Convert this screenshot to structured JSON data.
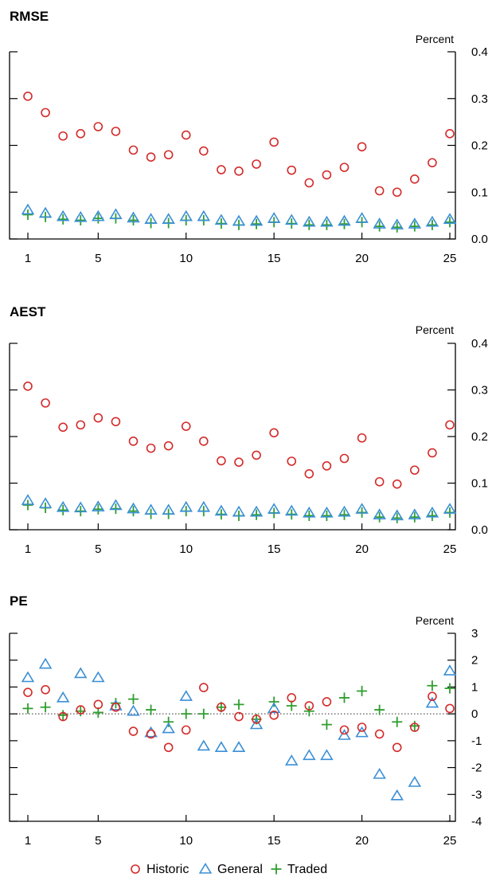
{
  "colors": {
    "historic": "#d42a2a",
    "general": "#3a8fd6",
    "traded": "#2f9e2f",
    "zero_line": "#555555"
  },
  "legend": [
    {
      "key": "historic",
      "label": "Historic",
      "marker": "circle"
    },
    {
      "key": "general",
      "label": "General",
      "marker": "triangle"
    },
    {
      "key": "traded",
      "label": "Traded",
      "marker": "plus"
    }
  ],
  "chart_data": [
    {
      "type": "scatter",
      "title": "RMSE",
      "ylabel": "Percent",
      "xlim": [
        1,
        25
      ],
      "ylim": [
        0,
        0.4
      ],
      "xticks": [
        "1",
        "5",
        "10",
        "15",
        "20",
        "25"
      ],
      "yticks": [
        "0.0",
        "0.1",
        "0.2",
        "0.3",
        "0.4"
      ],
      "x": [
        1,
        2,
        3,
        4,
        5,
        6,
        7,
        8,
        9,
        10,
        11,
        12,
        13,
        14,
        15,
        16,
        17,
        18,
        19,
        20,
        21,
        22,
        23,
        24,
        25
      ],
      "series": [
        {
          "name": "Historic",
          "values": [
            0.305,
            0.27,
            0.22,
            0.225,
            0.24,
            0.23,
            0.19,
            0.175,
            0.18,
            0.222,
            0.188,
            0.148,
            0.145,
            0.16,
            0.207,
            0.147,
            0.12,
            0.137,
            0.153,
            0.197,
            0.103,
            0.1,
            0.128,
            0.163,
            0.225
          ]
        },
        {
          "name": "General",
          "values": [
            0.062,
            0.055,
            0.048,
            0.046,
            0.048,
            0.052,
            0.045,
            0.042,
            0.042,
            0.048,
            0.048,
            0.04,
            0.038,
            0.038,
            0.044,
            0.04,
            0.036,
            0.036,
            0.038,
            0.044,
            0.032,
            0.03,
            0.032,
            0.036,
            0.042
          ]
        },
        {
          "name": "Traded",
          "values": [
            0.052,
            0.047,
            0.042,
            0.04,
            0.044,
            0.044,
            0.04,
            0.034,
            0.034,
            0.04,
            0.04,
            0.033,
            0.03,
            0.032,
            0.036,
            0.033,
            0.03,
            0.03,
            0.032,
            0.036,
            0.027,
            0.025,
            0.027,
            0.03,
            0.036
          ]
        }
      ]
    },
    {
      "type": "scatter",
      "title": "AEST",
      "ylabel": "Percent",
      "xlim": [
        1,
        25
      ],
      "ylim": [
        0,
        0.4
      ],
      "xticks": [
        "1",
        "5",
        "10",
        "15",
        "20",
        "25"
      ],
      "yticks": [
        "0.0",
        "0.1",
        "0.2",
        "0.3",
        "0.4"
      ],
      "x": [
        1,
        2,
        3,
        4,
        5,
        6,
        7,
        8,
        9,
        10,
        11,
        12,
        13,
        14,
        15,
        16,
        17,
        18,
        19,
        20,
        21,
        22,
        23,
        24,
        25
      ],
      "series": [
        {
          "name": "Historic",
          "values": [
            0.308,
            0.272,
            0.22,
            0.225,
            0.24,
            0.232,
            0.19,
            0.175,
            0.18,
            0.222,
            0.19,
            0.148,
            0.145,
            0.16,
            0.208,
            0.147,
            0.12,
            0.137,
            0.153,
            0.197,
            0.103,
            0.098,
            0.128,
            0.165,
            0.225
          ]
        },
        {
          "name": "General",
          "values": [
            0.063,
            0.056,
            0.048,
            0.047,
            0.049,
            0.052,
            0.045,
            0.042,
            0.042,
            0.048,
            0.048,
            0.04,
            0.038,
            0.038,
            0.044,
            0.04,
            0.036,
            0.036,
            0.038,
            0.044,
            0.032,
            0.03,
            0.032,
            0.036,
            0.044
          ]
        },
        {
          "name": "Traded",
          "values": [
            0.053,
            0.047,
            0.042,
            0.04,
            0.044,
            0.045,
            0.04,
            0.034,
            0.034,
            0.04,
            0.04,
            0.033,
            0.03,
            0.032,
            0.036,
            0.033,
            0.03,
            0.03,
            0.032,
            0.037,
            0.027,
            0.025,
            0.027,
            0.03,
            0.037
          ]
        }
      ]
    },
    {
      "type": "scatter",
      "title": "PE",
      "ylabel": "Percent",
      "xlim": [
        1,
        25
      ],
      "ylim": [
        -4,
        3
      ],
      "xticks": [
        "1",
        "5",
        "10",
        "15",
        "20",
        "25"
      ],
      "yticks": [
        "-4",
        "-3",
        "-2",
        "-1",
        "0",
        "1",
        "2",
        "3"
      ],
      "zero_line": true,
      "x": [
        1,
        2,
        3,
        4,
        5,
        6,
        7,
        8,
        9,
        10,
        11,
        12,
        13,
        14,
        15,
        16,
        17,
        18,
        19,
        20,
        21,
        22,
        23,
        24,
        25
      ],
      "series": [
        {
          "name": "Historic",
          "values": [
            0.8,
            0.9,
            -0.1,
            0.15,
            0.35,
            0.25,
            -0.65,
            -0.75,
            -1.25,
            -0.6,
            0.98,
            0.25,
            -0.1,
            -0.2,
            -0.05,
            0.6,
            0.3,
            0.45,
            -0.6,
            -0.5,
            -0.75,
            -1.25,
            -0.5,
            0.65,
            0.2
          ]
        },
        {
          "name": "General",
          "values": [
            1.35,
            1.85,
            0.6,
            1.5,
            1.35,
            0.3,
            0.1,
            -0.7,
            -0.55,
            0.65,
            -1.2,
            -1.25,
            -1.25,
            -0.4,
            0.2,
            -1.75,
            -1.55,
            -1.55,
            -0.8,
            -0.7,
            -2.25,
            -3.05,
            -2.55,
            0.4,
            1.6
          ]
        },
        {
          "name": "Traded",
          "values": [
            0.2,
            0.25,
            -0.05,
            0.1,
            0.05,
            0.4,
            0.55,
            0.15,
            -0.3,
            0.0,
            0.0,
            0.25,
            0.35,
            -0.2,
            0.45,
            0.3,
            0.1,
            -0.4,
            0.6,
            0.85,
            0.15,
            -0.3,
            -0.45,
            1.05,
            0.95
          ]
        }
      ]
    }
  ]
}
